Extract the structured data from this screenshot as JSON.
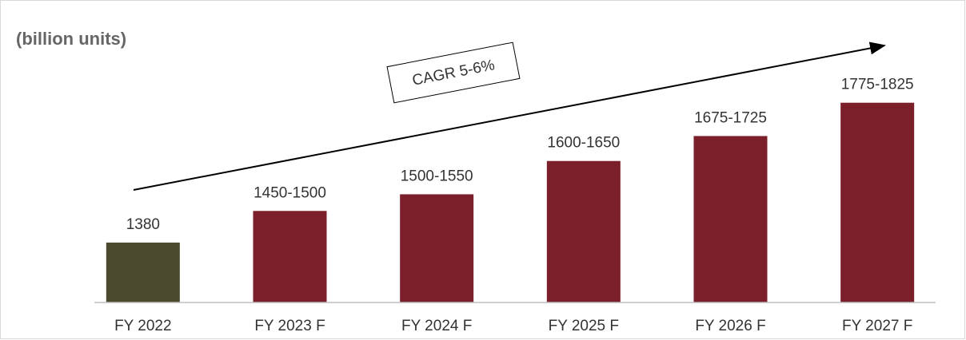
{
  "chart_data": {
    "type": "bar",
    "title": "(billion units)",
    "annotation": "CAGR 5-6%",
    "categories": [
      "FY 2022",
      "FY 2023 F",
      "FY 2024 F",
      "FY 2025 F",
      "FY 2026 F",
      "FY 2027 F"
    ],
    "values": [
      1380,
      1475,
      1525,
      1625,
      1700,
      1800
    ],
    "value_labels": [
      "1380",
      "1450-1500",
      "1500-1550",
      "1600-1650",
      "1675-1725",
      "1775-1825"
    ],
    "colors": [
      "#4b4a2e",
      "#7b1f2b",
      "#7b1f2b",
      "#7b1f2b",
      "#7b1f2b",
      "#7b1f2b"
    ],
    "ylim": [
      1200,
      1900
    ]
  }
}
